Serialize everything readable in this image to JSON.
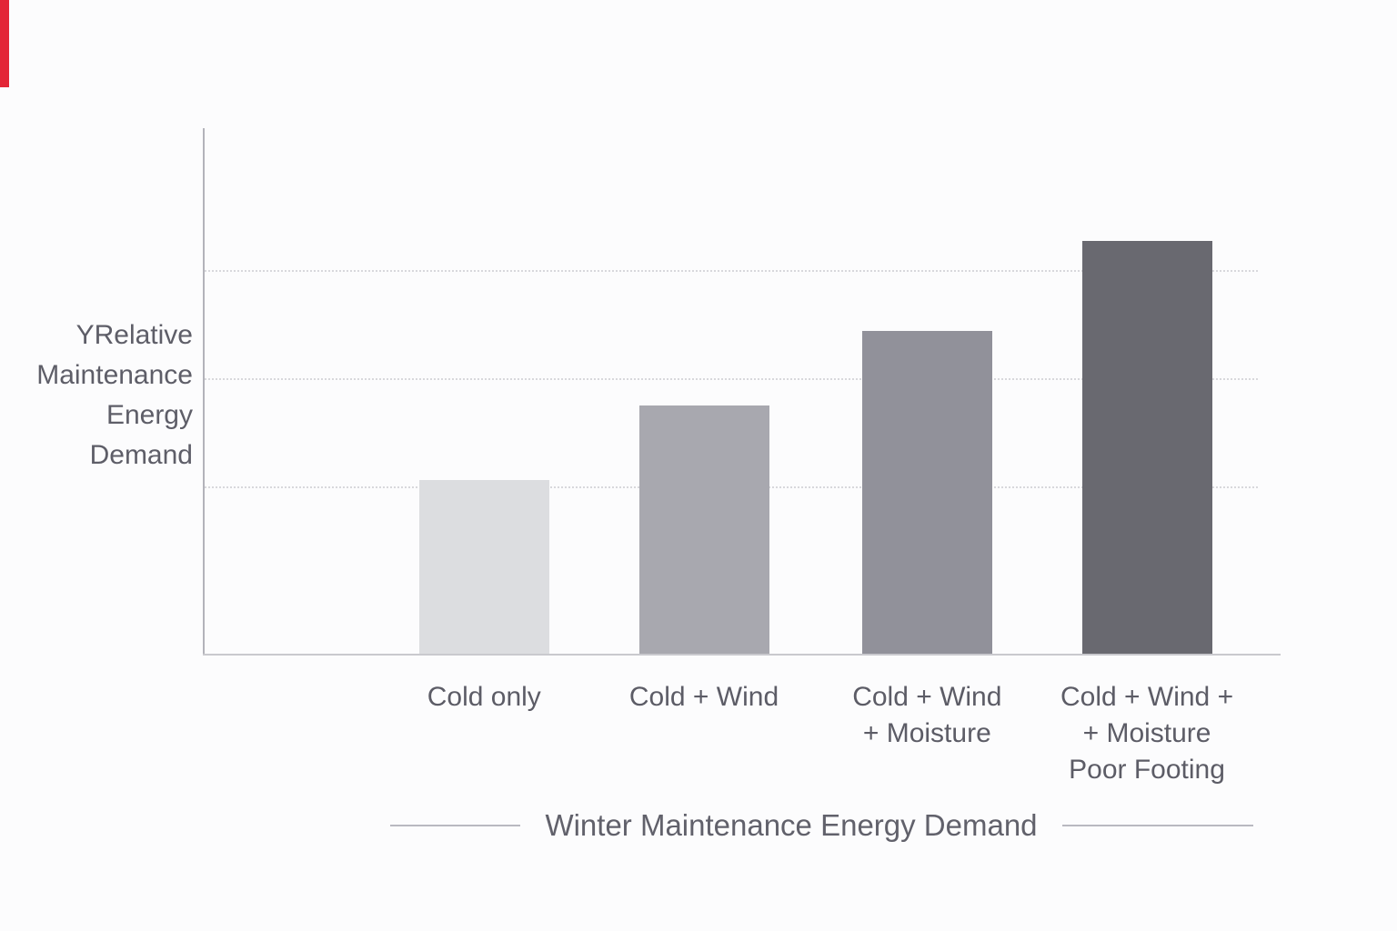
{
  "page": {
    "background": "#fcfcfd"
  },
  "artifact": {
    "left_red_strip_color": "#e32636"
  },
  "chart_data": {
    "type": "bar",
    "title": "Winter Maintenance Energy Demand",
    "ylabel": "YRelative Maintenance Energy Demand",
    "ylabel_lines": [
      "YRelative",
      "Maintenance",
      "Energy",
      "Demand"
    ],
    "xlabel": "",
    "categories": [
      "Cold only",
      "Cold + Wind",
      "Cold + Wind + Moisture",
      "Cold + Wind + + Moisture Poor Footing"
    ],
    "category_label_lines": [
      [
        "Cold only"
      ],
      [
        "Cold + Wind"
      ],
      [
        "Cold + Wind",
        "+ Moisture"
      ],
      [
        "Cold + Wind +",
        "+ Moisture",
        "Poor Footing"
      ]
    ],
    "values_relative": [
      1.0,
      1.43,
      1.86,
      2.38
    ],
    "series": [
      {
        "name": "Relative Maintenance Energy Demand",
        "height_pct_of_axis": [
          33.0,
          47.2,
          61.4,
          78.5
        ]
      }
    ],
    "bar_center_pct": [
      26.1,
      46.5,
      67.2,
      87.6
    ],
    "bar_colors": [
      "#dcdde0",
      "#a8a8af",
      "#91919a",
      "#696970"
    ],
    "gridlines_pct_from_bottom": [
      31.5,
      52.1,
      72.7
    ],
    "grid": "horizontal-dotted",
    "legend": "none",
    "y_tick_labels": [],
    "axis_color": "#b3b3ba",
    "grid_color": "#d8d8dc",
    "text_color": "#5c5c66"
  }
}
